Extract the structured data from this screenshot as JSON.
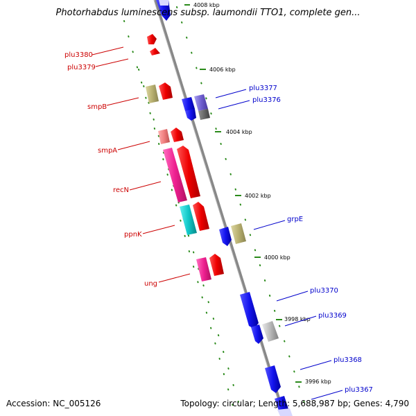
{
  "title": "Photorhabdus luminescens subsp. laumondii TTO1, complete gen...",
  "accession": "Accession: NC_005126",
  "topology": "Topology: circular; Length: 5,688,987 bp; Genes: 4,790",
  "scale_labels": [
    "4008 kbp",
    "4006 kbp",
    "4004 kbp",
    "4002 kbp",
    "4000 kbp",
    "3998 kbp",
    "3996 kbp"
  ],
  "genes_left": [
    "plu3380",
    "plu3379",
    "smpB",
    "smpA",
    "recN",
    "ppnK",
    "ung"
  ],
  "genes_right": [
    "plu3377",
    "plu3376",
    "grpE",
    "plu3370",
    "plu3369",
    "plu3368",
    "plu3367"
  ],
  "colors": {
    "axis": "#888888",
    "tick_strand": "#2a8a1a",
    "red_gene": "#ee0000",
    "blue_gene": "#1414ee",
    "magenta_gene": "#ee2090",
    "cyan_gene": "#10c8c8",
    "olive_gene": "#b8b070",
    "pink_gene": "#f08080",
    "purple_gene": "#7060d0",
    "gray_gene": "#b8b8b8",
    "label_left": "#cc0000",
    "label_right": "#0000cc"
  }
}
